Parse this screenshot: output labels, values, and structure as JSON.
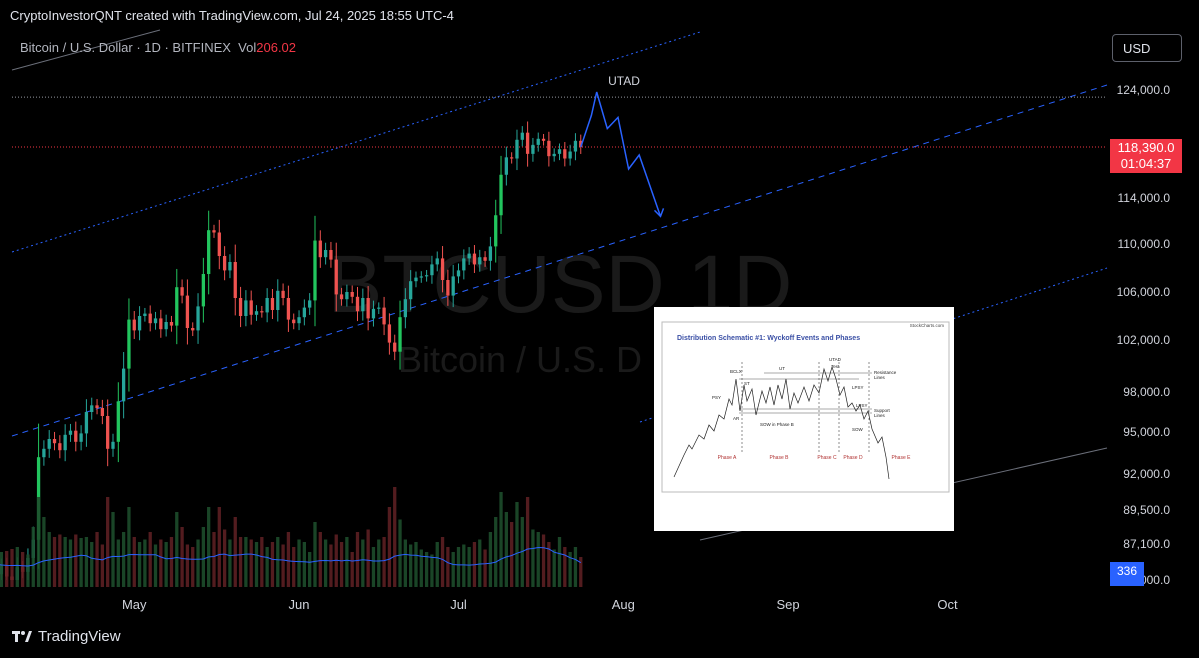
{
  "header": {
    "text": "CryptoInvestorQNT created with TradingView.com, Jul 24, 2025 18:55 UTC-4"
  },
  "legend": {
    "symbol": "Bitcoin / U.S. Dollar · 1D · BITFINEX",
    "vol_label": "Vol",
    "vol_value": "206.02"
  },
  "currency_button": "USD",
  "watermark": {
    "ticker": "BTCUSD 1D",
    "name": "Bitcoin / U.S. D"
  },
  "annotation": "UTAD",
  "price_tag": {
    "price": "118,390.0",
    "countdown": "01:04:37"
  },
  "volume_tag": "336",
  "footer": {
    "brand": "TradingView"
  },
  "colors": {
    "up": "#26a69a",
    "down": "#ef5350",
    "up_bright": "#22c55e",
    "path": "#2962ff",
    "ma": "#2962ff"
  },
  "inset": {
    "site": "StockCharts.com",
    "title": "Distribution Schematic #1: Wyckoff Events and Phases",
    "labels": [
      "BCLX",
      "PSY",
      "ST",
      "AR",
      "UT",
      "SOW in Phase B",
      "UTAD",
      "Test",
      "LPSY",
      "LPSY",
      "SOW",
      "Resistance",
      "Lines",
      "Support",
      "Lines"
    ],
    "phases": [
      "Phase A",
      "Phase B",
      "Phase C",
      "Phase D",
      "Phase E"
    ]
  },
  "chart_data": {
    "type": "candlestick",
    "symbol": "BTCUSD",
    "ylim": [
      84000,
      126000
    ],
    "y_ticks": [
      "124,000.0",
      "118,390.0",
      "114,000.0",
      "110,000.0",
      "106,000.0",
      "102,000.0",
      "98,000.0",
      "95,000.0",
      "92,000.0",
      "89,500.0",
      "87,100.0",
      "84,000.0"
    ],
    "y_tick_values": [
      124000,
      118390,
      114000,
      110000,
      106000,
      102000,
      98000,
      95000,
      92000,
      89500,
      87100,
      84000
    ],
    "x_labels": [
      "May",
      "Jun",
      "Jul",
      "Aug",
      "Sep",
      "Oct"
    ],
    "x_label_dates": [
      "2025-05-01",
      "2025-06-01",
      "2025-07-01",
      "2025-08-01",
      "2025-09-01",
      "2025-10-01"
    ],
    "x_start": "2025-04-08",
    "x_end": "2025-10-31",
    "last_date": "2025-07-24",
    "closes": [
      77000,
      79500,
      82800,
      84500,
      85200,
      84300,
      83800,
      85100,
      84700,
      85900,
      87400,
      93200,
      93800,
      94500,
      94200,
      93700,
      94800,
      95100,
      94300,
      94900,
      96500,
      97000,
      96800,
      96200,
      93800,
      94300,
      97300,
      99800,
      103700,
      102800,
      104000,
      104200,
      103400,
      103800,
      102900,
      103500,
      103200,
      106400,
      105700,
      103000,
      102800,
      104800,
      107500,
      111200,
      111000,
      109000,
      107800,
      108500,
      105500,
      104000,
      105300,
      104100,
      104400,
      104300,
      105500,
      104500,
      106100,
      105500,
      103700,
      103400,
      103900,
      104700,
      105300,
      110300,
      108900,
      109500,
      108700,
      105800,
      105400,
      106000,
      105600,
      104400,
      105500,
      103800,
      104600,
      104700,
      103300,
      101800,
      101100,
      103900,
      105400,
      106900,
      107200,
      107300,
      107400,
      108300,
      108800,
      107000,
      105700,
      107300,
      107800,
      108800,
      109200,
      108300,
      108900,
      108600,
      109800,
      112500,
      116000,
      117500,
      117400,
      119100,
      119800,
      117800,
      118600,
      119200,
      119000,
      117600,
      117800,
      118200,
      117400,
      118000,
      119000,
      118400
    ],
    "volumes": [
      85,
      90,
      80,
      75,
      70,
      72,
      76,
      80,
      70,
      65,
      120,
      180,
      140,
      110,
      100,
      105,
      100,
      95,
      105,
      98,
      100,
      90,
      110,
      85,
      180,
      150,
      95,
      110,
      160,
      100,
      90,
      95,
      110,
      85,
      95,
      90,
      100,
      150,
      120,
      85,
      80,
      95,
      120,
      160,
      110,
      160,
      115,
      95,
      140,
      100,
      100,
      95,
      90,
      100,
      80,
      90,
      100,
      85,
      110,
      80,
      95,
      90,
      70,
      130,
      110,
      95,
      85,
      105,
      90,
      100,
      70,
      110,
      95,
      115,
      80,
      95,
      100,
      160,
      200,
      135,
      95,
      85,
      90,
      75,
      70,
      65,
      90,
      100,
      80,
      70,
      80,
      85,
      80,
      90,
      95,
      75,
      110,
      140,
      190,
      150,
      130,
      170,
      140,
      180,
      115,
      110,
      105,
      90,
      75,
      100,
      80,
      70,
      80,
      60
    ],
    "projection": [
      [
        "2025-07-24",
        118390
      ],
      [
        "2025-07-26",
        121500
      ],
      [
        "2025-07-27",
        123800
      ],
      [
        "2025-07-29",
        120200
      ],
      [
        "2025-07-31",
        121300
      ],
      [
        "2025-08-02",
        116500
      ],
      [
        "2025-08-04",
        117700
      ],
      [
        "2025-08-08",
        112400
      ]
    ]
  }
}
